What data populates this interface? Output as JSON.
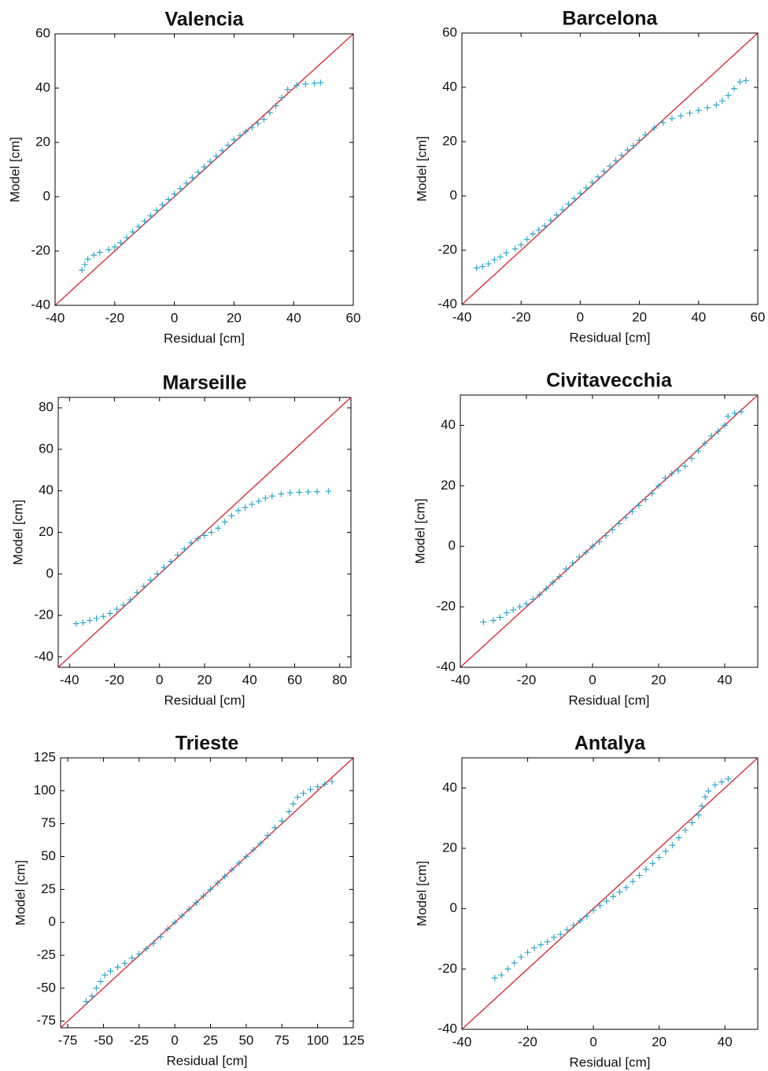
{
  "chart_data": [
    {
      "type": "scatter",
      "title": "Valencia",
      "x_label": "Residual [cm]",
      "y_label": "Model [cm]",
      "color": "#1fa3c9",
      "marker": "+",
      "reference_line_color": "#d62d3a",
      "xlim": [
        -40,
        60
      ],
      "ylim": [
        -40,
        60
      ],
      "xticks": [
        -40,
        -20,
        0,
        20,
        40,
        60
      ],
      "yticks": [
        -40,
        -20,
        0,
        20,
        40,
        60
      ],
      "x": [
        -31,
        -30,
        -29,
        -27,
        -25,
        -22,
        -20,
        -18,
        -16,
        -14,
        -12,
        -10,
        -8,
        -6,
        -4,
        -2,
        0,
        2,
        4,
        6,
        8,
        10,
        12,
        14,
        16,
        18,
        20,
        22,
        24,
        26,
        28,
        30,
        32,
        34,
        36,
        38,
        41,
        44,
        47,
        49
      ],
      "values": [
        -27,
        -25,
        -23,
        -21.5,
        -20.5,
        -19.5,
        -18.5,
        -17,
        -15,
        -13,
        -11,
        -9,
        -7,
        -5,
        -3,
        -1,
        1,
        3,
        5,
        7,
        9,
        11,
        13,
        15,
        17,
        19,
        21,
        22.5,
        24,
        25.5,
        27,
        28.5,
        31,
        33.5,
        36.5,
        39.5,
        41,
        41.5,
        41.8,
        42
      ]
    },
    {
      "type": "scatter",
      "title": "Barcelona",
      "x_label": "Residual [cm]",
      "y_label": "Model [cm]",
      "color": "#1fa3c9",
      "marker": "+",
      "reference_line_color": "#d62d3a",
      "xlim": [
        -40,
        60
      ],
      "ylim": [
        -40,
        60
      ],
      "xticks": [
        -40,
        -20,
        0,
        20,
        40,
        60
      ],
      "yticks": [
        -40,
        -20,
        0,
        20,
        40,
        60
      ],
      "x": [
        -35,
        -33,
        -31,
        -29,
        -27,
        -25,
        -22,
        -20,
        -18,
        -16,
        -14,
        -12,
        -10,
        -8,
        -6,
        -4,
        -2,
        0,
        2,
        4,
        6,
        8,
        10,
        12,
        14,
        16,
        18,
        20,
        22,
        25,
        28,
        31,
        34,
        37,
        40,
        43,
        46,
        48,
        50,
        52,
        54,
        56
      ],
      "values": [
        -26.5,
        -26,
        -25,
        -23.5,
        -22.5,
        -21,
        -19.5,
        -18,
        -16,
        -14,
        -12.5,
        -11,
        -9,
        -7,
        -5,
        -3,
        -1,
        1,
        3,
        5,
        7,
        9,
        11,
        13,
        15,
        17,
        18.5,
        20.5,
        22.5,
        25,
        27,
        28.5,
        29.5,
        30.5,
        31.5,
        32.5,
        33.5,
        35,
        37,
        39.5,
        42,
        42.5
      ]
    },
    {
      "type": "scatter",
      "title": "Marseille",
      "x_label": "Residual [cm]",
      "y_label": "Model [cm]",
      "color": "#1fa3c9",
      "marker": "+",
      "reference_line_color": "#d62d3a",
      "xlim": [
        -45,
        85
      ],
      "ylim": [
        -45,
        85
      ],
      "xticks": [
        -40,
        -20,
        0,
        20,
        40,
        60,
        80
      ],
      "yticks": [
        -40,
        -20,
        0,
        20,
        40,
        60,
        80
      ],
      "x": [
        -37,
        -34,
        -31,
        -28,
        -25,
        -22,
        -19,
        -16,
        -13,
        -10,
        -7,
        -4,
        -1,
        2,
        5,
        8,
        11,
        14,
        17,
        20,
        23,
        26,
        29,
        32,
        35,
        38,
        41,
        44,
        47,
        50,
        54,
        58,
        62,
        66,
        70,
        75
      ],
      "values": [
        -24,
        -23.5,
        -22.5,
        -21.5,
        -20.5,
        -19,
        -17,
        -15,
        -12.5,
        -9,
        -6,
        -3,
        0,
        3,
        6,
        9,
        12,
        15,
        17,
        18.5,
        20,
        22,
        25,
        28,
        30.5,
        32,
        33.5,
        35,
        36.5,
        37.5,
        38.5,
        39,
        39.3,
        39.5,
        39.6,
        39.8
      ]
    },
    {
      "type": "scatter",
      "title": "Civitavecchia",
      "x_label": "Residual [cm]",
      "y_label": "Model [cm]",
      "color": "#1fa3c9",
      "marker": "+",
      "reference_line_color": "#d62d3a",
      "xlim": [
        -40,
        50
      ],
      "ylim": [
        -40,
        50
      ],
      "xticks": [
        -40,
        -20,
        0,
        20,
        40
      ],
      "yticks": [
        -40,
        -20,
        0,
        20,
        40
      ],
      "x": [
        -33,
        -30,
        -28,
        -26,
        -24,
        -22,
        -20,
        -18,
        -16,
        -14,
        -12,
        -10,
        -8,
        -6,
        -4,
        -2,
        0,
        2,
        4,
        6,
        8,
        10,
        12,
        14,
        16,
        18,
        20,
        22,
        24,
        26,
        28,
        30,
        32,
        34,
        36,
        38,
        40,
        41,
        43,
        45
      ],
      "values": [
        -25,
        -24.5,
        -23.5,
        -22,
        -21,
        -20,
        -19,
        -17.5,
        -16,
        -14,
        -12,
        -10,
        -7.5,
        -5.5,
        -3.5,
        -2,
        0,
        1.5,
        3.5,
        5.5,
        7.5,
        9.5,
        11.5,
        13.5,
        15.5,
        17.5,
        20,
        22.5,
        24,
        25,
        26.5,
        29,
        31.5,
        34,
        36.5,
        38,
        40,
        43,
        44,
        44.5
      ]
    },
    {
      "type": "scatter",
      "title": "Trieste",
      "x_label": "Residual [cm]",
      "y_label": "Model [cm]",
      "color": "#1fa3c9",
      "marker": "+",
      "reference_line_color": "#d62d3a",
      "xlim": [
        -80,
        125
      ],
      "ylim": [
        -80,
        125
      ],
      "xticks": [
        -75,
        -50,
        -25,
        0,
        25,
        50,
        75,
        100,
        125
      ],
      "yticks": [
        -75,
        -50,
        -25,
        0,
        25,
        50,
        75,
        100,
        125
      ],
      "x": [
        -62,
        -58,
        -55,
        -52,
        -49,
        -45,
        -40,
        -35,
        -30,
        -25,
        -20,
        -15,
        -10,
        -5,
        0,
        5,
        10,
        15,
        20,
        25,
        30,
        35,
        40,
        45,
        50,
        55,
        60,
        65,
        70,
        75,
        80,
        83,
        86,
        90,
        95,
        100,
        105,
        110
      ],
      "values": [
        -60,
        -56,
        -50,
        -45,
        -40,
        -37,
        -34,
        -31,
        -27,
        -24,
        -20,
        -16,
        -11,
        -5,
        0,
        5,
        10,
        15,
        20,
        25,
        30,
        35,
        40,
        45,
        50,
        55,
        60,
        66,
        72,
        77,
        84,
        90,
        95,
        98,
        101,
        103,
        105,
        107
      ]
    },
    {
      "type": "scatter",
      "title": "Antalya",
      "x_label": "Residual [cm]",
      "y_label": "Model [cm]",
      "color": "#1fa3c9",
      "marker": "+",
      "reference_line_color": "#d62d3a",
      "xlim": [
        -40,
        50
      ],
      "ylim": [
        -40,
        50
      ],
      "xticks": [
        -40,
        -20,
        0,
        20,
        40
      ],
      "yticks": [
        -40,
        -20,
        0,
        20,
        40
      ],
      "x": [
        -30,
        -28,
        -26,
        -24,
        -22,
        -20,
        -18,
        -16,
        -14,
        -12,
        -10,
        -8,
        -6,
        -4,
        -2,
        0,
        2,
        4,
        6,
        8,
        10,
        12,
        14,
        16,
        18,
        20,
        22,
        24,
        26,
        28,
        30,
        32,
        33,
        34,
        35,
        37,
        39,
        41
      ],
      "values": [
        -23,
        -22,
        -20,
        -18,
        -16,
        -14.5,
        -13,
        -12,
        -11,
        -9.5,
        -8.5,
        -7,
        -5.5,
        -4,
        -2.5,
        -0.5,
        1,
        2.5,
        4,
        5.5,
        7,
        9,
        11,
        13,
        15,
        17,
        19,
        21,
        23.5,
        26,
        28.5,
        31,
        34,
        37,
        39,
        41,
        42,
        43
      ]
    }
  ]
}
